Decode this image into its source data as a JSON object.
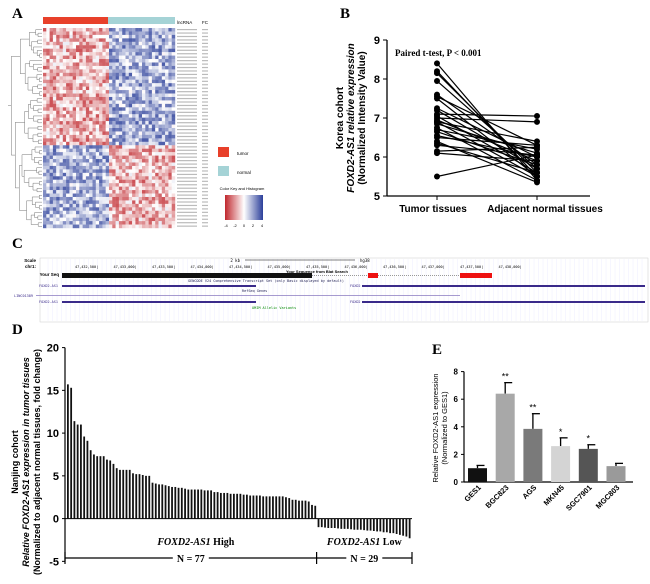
{
  "panels": {
    "A": "A",
    "B": "B",
    "C": "C",
    "D": "D",
    "E": "E"
  },
  "heatmap": {
    "col_header": "lncRNA",
    "fc_header": "FC",
    "legend": [
      {
        "label": "tumor",
        "color": "#e8402a"
      },
      {
        "label": "normal",
        "color": "#a5d3d6"
      }
    ],
    "color_key_title": "Color Key and Histogram",
    "color_key_ticks": [
      "-4",
      "-2",
      "0",
      "2",
      "4"
    ],
    "colors": {
      "low": "#c0272d",
      "mid": "#ffffff",
      "high": "#2b3f9a"
    }
  },
  "genome_browser": {
    "scale_label": "Scale",
    "chrom_label": "chr1:",
    "scale_text": "2 kb",
    "assembly": "hg38",
    "positions": [
      "47,432,500|",
      "47,433,000|",
      "47,433,500|",
      "47,434,000|",
      "47,434,500|",
      "47,435,000|",
      "47,435,500|",
      "47,436,000|",
      "47,436,500|",
      "47,437,000|",
      "47,437,500|",
      "47,438,000|"
    ],
    "your_seq_label": "Your Seq",
    "blat_label": "Your Sequence from Blat Search",
    "gencode_label": "GENCODE V24 Comprehensive Transcript Set (only Basic displayed by default)",
    "refseq_label": "RefSeq Genes",
    "omim_label": "OMIM Allelic Variants",
    "genes": {
      "left": "FOXD2-AS1",
      "right": "FOXD2",
      "linc": "LINC01389"
    }
  },
  "chart_data": [
    {
      "type": "line",
      "panel": "B",
      "ylabel": [
        "Korea cohort",
        "FOXD2-AS1 relative expression",
        "(Normalized Intensity Value)"
      ],
      "categories": [
        "Tumor tissues",
        "Adjacent normal tissues"
      ],
      "annotation": "Paired t-test, P < 0.001",
      "ylim": [
        5,
        9
      ],
      "yticks": [
        "5",
        "6",
        "7",
        "8",
        "9"
      ],
      "pairs": [
        [
          8.4,
          5.4
        ],
        [
          8.2,
          5.5
        ],
        [
          8.15,
          5.6
        ],
        [
          7.95,
          5.7
        ],
        [
          7.6,
          5.8
        ],
        [
          7.55,
          6.3
        ],
        [
          7.5,
          5.5
        ],
        [
          7.25,
          6.0
        ],
        [
          7.2,
          5.7
        ],
        [
          7.1,
          7.05
        ],
        [
          7.05,
          5.6
        ],
        [
          7.0,
          6.9
        ],
        [
          6.95,
          5.9
        ],
        [
          6.9,
          5.5
        ],
        [
          6.9,
          6.4
        ],
        [
          6.85,
          6.1
        ],
        [
          6.75,
          5.4
        ],
        [
          6.7,
          6.2
        ],
        [
          6.65,
          5.8
        ],
        [
          6.55,
          6.0
        ],
        [
          6.5,
          6.3
        ],
        [
          6.4,
          5.35
        ],
        [
          6.35,
          5.6
        ],
        [
          6.3,
          6.05
        ],
        [
          6.15,
          6.25
        ],
        [
          6.1,
          5.9
        ],
        [
          5.5,
          6.05
        ]
      ]
    },
    {
      "type": "bar",
      "panel": "D",
      "ylabel": [
        "Nanjing cohort",
        "Relative FOXD2-AS1 expression in tumor tissues",
        "(Normalized to adjacent normal tissues, fold change)"
      ],
      "ylim": [
        -5,
        20
      ],
      "yticks": [
        "-5",
        "0",
        "5",
        "10",
        "15",
        "20"
      ],
      "high_values": [
        15.7,
        15.3,
        11.4,
        11.0,
        11.0,
        9.6,
        9.1,
        8.0,
        7.5,
        7.3,
        7.3,
        7.3,
        6.9,
        6.8,
        6.4,
        5.9,
        5.7,
        5.7,
        5.7,
        5.7,
        5.3,
        5.2,
        5.2,
        5.1,
        5.0,
        5.0,
        4.2,
        4.1,
        4.0,
        4.0,
        3.9,
        3.8,
        3.7,
        3.7,
        3.6,
        3.6,
        3.5,
        3.4,
        3.4,
        3.4,
        3.4,
        3.4,
        3.3,
        3.3,
        3.3,
        3.1,
        3.1,
        3.0,
        3.0,
        3.0,
        2.9,
        2.9,
        2.9,
        2.9,
        2.8,
        2.8,
        2.7,
        2.7,
        2.7,
        2.7,
        2.6,
        2.6,
        2.6,
        2.6,
        2.6,
        2.6,
        2.6,
        2.5,
        2.4,
        2.2,
        2.2,
        2.1,
        2.1,
        2.1,
        2.0,
        1.6,
        1.5
      ],
      "low_values": [
        -1.0,
        -1.0,
        -1.05,
        -1.1,
        -1.1,
        -1.1,
        -1.15,
        -1.2,
        -1.2,
        -1.2,
        -1.25,
        -1.3,
        -1.3,
        -1.3,
        -1.35,
        -1.4,
        -1.4,
        -1.45,
        -1.5,
        -1.5,
        -1.6,
        -1.6,
        -1.7,
        -1.7,
        -1.8,
        -1.9,
        -2.0,
        -2.1,
        -2.3
      ],
      "groups": [
        {
          "label": "FOXD2-AS1 High",
          "n": "N = 77"
        },
        {
          "label": "FOXD2-AS1 Low",
          "n": "N = 29"
        }
      ]
    },
    {
      "type": "bar",
      "panel": "E",
      "ylabel": [
        "Relative FOXD2-AS1 expression",
        "(Normalized to GES1)"
      ],
      "ylim": [
        0,
        8
      ],
      "yticks": [
        "0",
        "2",
        "4",
        "6",
        "8"
      ],
      "categories": [
        "GES1",
        "BGC823",
        "AGS",
        "MKN45",
        "SGC7901",
        "MGC803"
      ],
      "values": [
        1.0,
        6.4,
        3.85,
        2.6,
        2.4,
        1.15
      ],
      "errors": [
        0.2,
        0.8,
        1.1,
        0.6,
        0.3,
        0.2
      ],
      "significance": [
        "",
        "**",
        "**",
        "*",
        "*",
        ""
      ],
      "colors": [
        "#111111",
        "#a8a8a8",
        "#7a7a7a",
        "#d4d4d4",
        "#555555",
        "#9a9a9a"
      ]
    }
  ]
}
